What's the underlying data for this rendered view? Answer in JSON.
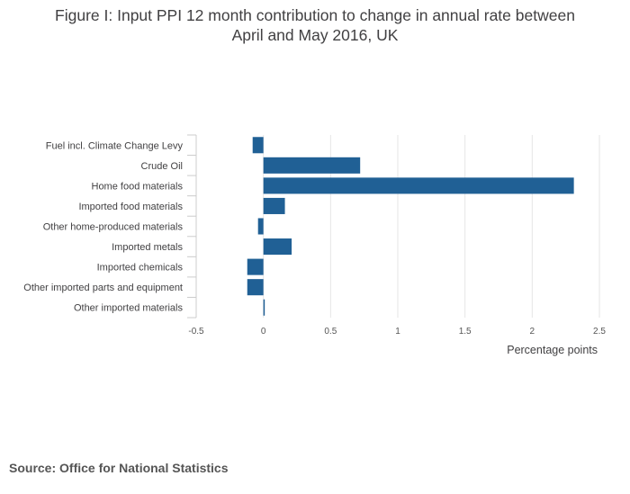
{
  "chart_data": {
    "type": "bar",
    "orientation": "horizontal",
    "title_lines": [
      "Figure I: Input PPI 12 month contribution to change in annual rate between",
      "April and May 2016, UK"
    ],
    "categories": [
      "Fuel incl. Climate Change Levy",
      "Crude Oil",
      "Home food materials",
      "Imported food materials",
      "Other home-produced materials",
      "Imported metals",
      "Imported chemicals",
      "Other imported parts and equipment",
      "Other imported materials"
    ],
    "values": [
      -0.08,
      0.72,
      2.31,
      0.16,
      -0.04,
      0.21,
      -0.12,
      -0.12,
      0.01
    ],
    "xlabel": "Percentage points",
    "ylabel": "",
    "xlim": [
      -0.5,
      2.5
    ],
    "xticks": [
      -0.5,
      0,
      0.5,
      1,
      1.5,
      2,
      2.5
    ],
    "xtick_labels": [
      "-0.5",
      "0",
      "0.5",
      "1",
      "1.5",
      "2",
      "2.5"
    ],
    "grid": true,
    "bar_color": "#206095"
  },
  "footer": {
    "source": "Source: Office for National Statistics"
  }
}
